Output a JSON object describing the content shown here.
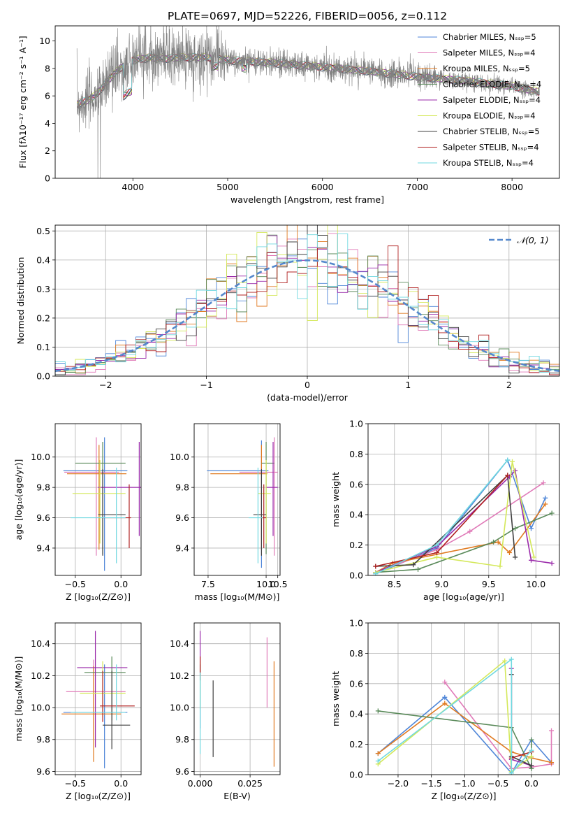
{
  "title": "PLATE=0697, MJD=52226, FIBERID=0056, z=0.112",
  "colors": {
    "Chabrier MILES": "#4f86d8",
    "Salpeter MILES": "#e07ab8",
    "Kroupa MILES": "#e07a20",
    "Chabrier ELODIE": "#5a8a5a",
    "Salpeter ELODIE": "#9a2aaa",
    "Kroupa ELODIE": "#d4e85a",
    "Chabrier STELIB": "#404040",
    "Salpeter STELIB": "#b02020",
    "Kroupa STELIB": "#70d8e0",
    "data": "#808080",
    "normal": "#5588cc"
  },
  "chart_data": [
    {
      "type": "line",
      "panel": "spectrum",
      "xlabel": "wavelength [Angstrom, rest frame]",
      "ylabel": "Flux [fλ10⁻¹⁷ erg cm⁻² s⁻¹ A⁻¹]",
      "xlim": [
        3180,
        8500
      ],
      "ylim": [
        0,
        11.1
      ],
      "xticks": [
        4000,
        5000,
        6000,
        7000,
        8000
      ],
      "yticks": [
        0,
        2,
        4,
        6,
        8,
        10
      ],
      "legend_position": "top-right",
      "legend": [
        {
          "label": "Chabrier MILES, Nₛₛₚ=5",
          "key": "Chabrier MILES"
        },
        {
          "label": "Salpeter MILES, Nₛₛₚ=4",
          "key": "Salpeter MILES"
        },
        {
          "label": "Kroupa MILES, Nₛₛₚ=5",
          "key": "Kroupa MILES"
        },
        {
          "label": "Chabrier ELODIE, Nₛₛₚ=4",
          "key": "Chabrier ELODIE"
        },
        {
          "label": "Salpeter ELODIE, Nₛₛₚ=4",
          "key": "Salpeter ELODIE"
        },
        {
          "label": "Kroupa ELODIE, Nₛₛₚ=4",
          "key": "Kroupa ELODIE"
        },
        {
          "label": "Chabrier STELIB, Nₛₛₚ=5",
          "key": "Chabrier STELIB"
        },
        {
          "label": "Salpeter STELIB, Nₛₛₚ=4",
          "key": "Salpeter STELIB"
        },
        {
          "label": "Kroupa STELIB, Nₛₛₚ=4",
          "key": "Kroupa STELIB"
        }
      ],
      "continuum": {
        "x": [
          3400,
          3500,
          3600,
          3700,
          3800,
          3900,
          4000,
          4100,
          4200,
          4300,
          4500,
          4800,
          5000,
          5500,
          6000,
          6500,
          7000,
          7500,
          8000,
          8280
        ],
        "y": [
          5.4,
          5.6,
          6.0,
          6.8,
          7.6,
          8.2,
          8.6,
          8.7,
          8.8,
          8.7,
          8.8,
          8.8,
          8.6,
          8.4,
          8.1,
          7.8,
          7.4,
          7.1,
          6.7,
          6.3
        ]
      },
      "data_range": [
        3410,
        8290
      ]
    },
    {
      "type": "histogram",
      "panel": "residuals",
      "xlabel": "(data-model)/error",
      "ylabel": "Normed distribution",
      "xlim": [
        -2.5,
        2.5
      ],
      "ylim": [
        0,
        0.52
      ],
      "xticks": [
        -2,
        -1,
        0,
        1,
        2
      ],
      "yticks": [
        0,
        0.1,
        0.2,
        0.3,
        0.4,
        0.5
      ],
      "bin_width": 0.1,
      "series_keys": [
        "Chabrier MILES",
        "Salpeter MILES",
        "Kroupa MILES",
        "Chabrier ELODIE",
        "Salpeter ELODIE",
        "Kroupa ELODIE",
        "Chabrier STELIB",
        "Salpeter STELIB",
        "Kroupa STELIB"
      ],
      "legend": [
        {
          "label": "𝒩(0, 1)",
          "style": "dashed"
        }
      ],
      "legend_position": "top-right"
    },
    {
      "type": "errorbar",
      "panel": "age-vs-Z",
      "xlabel": "Z [log₁₀(Z/Z⊙)]",
      "ylabel": "age  [log₁₀(age/yr)]",
      "xlim": [
        -0.72,
        0.22
      ],
      "ylim": [
        9.22,
        10.22
      ],
      "xticks": [
        -0.5,
        0.0
      ],
      "yticks": [
        9.4,
        9.6,
        9.8,
        10.0
      ],
      "points": [
        {
          "key": "Chabrier MILES",
          "x": -0.18,
          "xerr": [
            0.45,
            0.25
          ],
          "y": 9.91,
          "yerr": [
            0.66,
            0.22
          ]
        },
        {
          "key": "Salpeter MILES",
          "x": -0.27,
          "xerr": [
            0.35,
            0.25
          ],
          "y": 9.9,
          "yerr": [
            0.55,
            0.23
          ]
        },
        {
          "key": "Kroupa MILES",
          "x": -0.24,
          "xerr": [
            0.35,
            0.3
          ],
          "y": 9.89,
          "yerr": [
            0.5,
            0.19
          ]
        },
        {
          "key": "Chabrier ELODIE",
          "x": -0.2,
          "xerr": [
            0.3,
            0.25
          ],
          "y": 9.96,
          "yerr": [
            0.6,
            0.14
          ]
        },
        {
          "key": "Salpeter ELODIE",
          "x": 0.2,
          "xerr": [
            0.45,
            0.2
          ],
          "y": 9.8,
          "yerr": [
            0.32,
            0.3
          ]
        },
        {
          "key": "Kroupa ELODIE",
          "x": -0.23,
          "xerr": [
            0.3,
            0.28
          ],
          "y": 9.76,
          "yerr": [
            0.33,
            0.22
          ]
        },
        {
          "key": "Chabrier STELIB",
          "x": -0.2,
          "xerr": [
            0.05,
            0.25
          ],
          "y": 9.62,
          "yerr": [
            0.27,
            0.3
          ]
        },
        {
          "key": "Salpeter STELIB",
          "x": 0.09,
          "xerr": [
            0.3,
            0.02
          ],
          "y": 9.6,
          "yerr": [
            0.2,
            0.22
          ]
        },
        {
          "key": "Kroupa STELIB",
          "x": -0.05,
          "xerr": [
            0.5,
            0.1
          ],
          "y": 9.6,
          "yerr": [
            0.3,
            0.33
          ]
        }
      ]
    },
    {
      "type": "errorbar",
      "panel": "age-vs-mass",
      "xlabel": "mass [log₁₀(M/M⊙)]",
      "xlim": [
        6.9,
        10.6
      ],
      "ylim": [
        9.22,
        10.22
      ],
      "xticks": [
        7.5,
        10.0,
        10.5
      ],
      "xticklabels": [
        "7.5",
        "10.0",
        "10.5"
      ],
      "yticks": [
        9.4,
        9.6,
        9.8,
        10.0
      ],
      "points": [
        {
          "key": "Chabrier MILES",
          "x": 9.8,
          "xerr": [
            2.35,
            0.3
          ],
          "y": 9.91,
          "yerr": [
            0.64,
            0.2
          ]
        },
        {
          "key": "Salpeter MILES",
          "x": 10.35,
          "xerr": [
            1.5,
            0.15
          ],
          "y": 9.9,
          "yerr": [
            0.55,
            0.23
          ]
        },
        {
          "key": "Kroupa MILES",
          "x": 9.8,
          "xerr": [
            2.2,
            0.25
          ],
          "y": 9.89,
          "yerr": [
            0.5,
            0.19
          ]
        },
        {
          "key": "Chabrier ELODIE",
          "x": 10.0,
          "xerr": [
            0.2,
            0.35
          ],
          "y": 9.96,
          "yerr": [
            0.6,
            0.14
          ]
        },
        {
          "key": "Salpeter ELODIE",
          "x": 10.3,
          "xerr": [
            0.3,
            0.2
          ],
          "y": 9.8,
          "yerr": [
            0.32,
            0.3
          ]
        },
        {
          "key": "Kroupa ELODIE",
          "x": 10.0,
          "xerr": [
            0.35,
            0.2
          ],
          "y": 9.76,
          "yerr": [
            0.33,
            0.22
          ]
        },
        {
          "key": "Chabrier STELIB",
          "x": 9.8,
          "xerr": [
            0.35,
            0.2
          ],
          "y": 9.62,
          "yerr": [
            0.27,
            0.3
          ]
        },
        {
          "key": "Salpeter STELIB",
          "x": 9.9,
          "xerr": [
            0.1,
            0.1
          ],
          "y": 9.6,
          "yerr": [
            0.2,
            0.22
          ]
        },
        {
          "key": "Kroupa STELIB",
          "x": 9.65,
          "xerr": [
            0.4,
            0.2
          ],
          "y": 9.6,
          "yerr": [
            0.3,
            0.33
          ]
        }
      ]
    },
    {
      "type": "line",
      "panel": "massweight-vs-age",
      "xlabel": "age  [log₁₀(age/yr)]",
      "ylabel": "mass weight",
      "xlim": [
        8.22,
        10.25
      ],
      "ylim": [
        0,
        1.0
      ],
      "xticks": [
        8.5,
        9.0,
        9.5,
        10.0
      ],
      "yticks": [
        0,
        0.2,
        0.4,
        0.6,
        0.8,
        1.0
      ],
      "series": [
        {
          "key": "Chabrier MILES",
          "x": [
            8.3,
            8.95,
            9.7,
            9.95,
            10.1
          ],
          "y": [
            0.01,
            0.18,
            0.76,
            0.31,
            0.51
          ]
        },
        {
          "key": "Salpeter MILES",
          "x": [
            8.3,
            8.95,
            9.3,
            10.08
          ],
          "y": [
            0.02,
            0.17,
            0.29,
            0.61
          ]
        },
        {
          "key": "Kroupa MILES",
          "x": [
            8.3,
            8.48,
            9.6,
            9.72,
            10.1
          ],
          "y": [
            0.02,
            0.08,
            0.22,
            0.15,
            0.47
          ]
        },
        {
          "key": "Chabrier ELODIE",
          "x": [
            8.3,
            8.75,
            9.55,
            9.78,
            10.17
          ],
          "y": [
            0.02,
            0.04,
            0.22,
            0.31,
            0.41
          ]
        },
        {
          "key": "Salpeter ELODIE",
          "x": [
            8.3,
            8.95,
            9.72,
            9.78,
            9.95,
            10.17
          ],
          "y": [
            0.02,
            0.19,
            0.65,
            0.69,
            0.1,
            0.08
          ]
        },
        {
          "key": "Kroupa ELODIE",
          "x": [
            8.3,
            8.95,
            9.62,
            9.75,
            9.98
          ],
          "y": [
            0.02,
            0.12,
            0.06,
            0.75,
            0.12
          ]
        },
        {
          "key": "Chabrier STELIB",
          "x": [
            8.3,
            8.7,
            9.7,
            9.78
          ],
          "y": [
            0.06,
            0.07,
            0.66,
            0.12
          ]
        },
        {
          "key": "Salpeter STELIB",
          "x": [
            8.3,
            8.95,
            9.7
          ],
          "y": [
            0.06,
            0.15,
            0.66
          ]
        },
        {
          "key": "Kroupa STELIB",
          "x": [
            8.3,
            8.95,
            9.7
          ],
          "y": [
            0.01,
            0.2,
            0.76
          ]
        }
      ]
    },
    {
      "type": "errorbar",
      "panel": "mass-vs-Z",
      "xlabel": "Z [log₁₀(Z/Z⊙)]",
      "ylabel": "mass [log₁₀(M/M⊙)]",
      "xlim": [
        -0.72,
        0.22
      ],
      "ylim": [
        9.58,
        10.53
      ],
      "xticks": [
        -0.5,
        0.0
      ],
      "yticks": [
        9.6,
        9.8,
        10.0,
        10.2,
        10.4
      ],
      "points": [
        {
          "key": "Chabrier MILES",
          "x": -0.18,
          "xerr": [
            0.45,
            0.25
          ],
          "y": 9.97,
          "yerr": [
            0.35,
            0.3
          ]
        },
        {
          "key": "Salpeter MILES",
          "x": -0.3,
          "xerr": [
            0.3,
            0.35
          ],
          "y": 10.1,
          "yerr": [
            0.3,
            0.2
          ]
        },
        {
          "key": "Kroupa MILES",
          "x": -0.3,
          "xerr": [
            0.35,
            0.3
          ],
          "y": 9.96,
          "yerr": [
            0.3,
            0.3
          ]
        },
        {
          "key": "Chabrier ELODIE",
          "x": -0.1,
          "xerr": [
            0.3,
            0.15
          ],
          "y": 10.22,
          "yerr": [
            0.3,
            0.1
          ]
        },
        {
          "key": "Salpeter ELODIE",
          "x": -0.28,
          "xerr": [
            0.2,
            0.35
          ],
          "y": 10.25,
          "yerr": [
            0.5,
            0.23
          ]
        },
        {
          "key": "Kroupa ELODIE",
          "x": -0.2,
          "xerr": [
            0.25,
            0.25
          ],
          "y": 10.09,
          "yerr": [
            0.15,
            0.2
          ]
        },
        {
          "key": "Chabrier STELIB",
          "x": -0.1,
          "xerr": [
            0.1,
            0.2
          ],
          "y": 9.89,
          "yerr": [
            0.15,
            0.34
          ]
        },
        {
          "key": "Salpeter STELIB",
          "x": -0.2,
          "xerr": [
            0.03,
            0.35
          ],
          "y": 10.01,
          "yerr": [
            0.1,
            0.22
          ]
        },
        {
          "key": "Kroupa STELIB",
          "x": -0.05,
          "xerr": [
            0.5,
            0.1
          ],
          "y": 9.97,
          "yerr": [
            0.05,
            0.3
          ]
        }
      ]
    },
    {
      "type": "errorbar",
      "panel": "mass-vs-EBV",
      "xlabel": "E(B-V)",
      "xlim": [
        -0.003,
        0.04
      ],
      "ylim": [
        9.58,
        10.53
      ],
      "xticks": [
        0.0,
        0.025
      ],
      "xticklabels": [
        "0.000",
        "0.025"
      ],
      "yticks": [
        9.6,
        9.8,
        10.0,
        10.2,
        10.4
      ],
      "points": [
        {
          "key": "Chabrier MILES",
          "x": 0.0,
          "xerr": [
            0,
            0
          ],
          "y": 9.97,
          "yerr": [
            0.1,
            0.3
          ]
        },
        {
          "key": "Salpeter MILES",
          "x": 0.0335,
          "xerr": [
            0,
            0
          ],
          "y": 10.1,
          "yerr": [
            0.1,
            0.34
          ]
        },
        {
          "key": "Kroupa MILES",
          "x": 0.037,
          "xerr": [
            0,
            0
          ],
          "y": 9.96,
          "yerr": [
            0.33,
            0.33
          ]
        },
        {
          "key": "Chabrier ELODIE",
          "x": 0.0,
          "xerr": [
            0,
            0
          ],
          "y": 10.22,
          "yerr": [
            0.05,
            0.05
          ]
        },
        {
          "key": "Salpeter ELODIE",
          "x": 0.0,
          "xerr": [
            0,
            0
          ],
          "y": 10.3,
          "yerr": [
            0.1,
            0.18
          ]
        },
        {
          "key": "Kroupa ELODIE",
          "x": 0.0,
          "xerr": [
            0,
            0
          ],
          "y": 10.09,
          "yerr": [
            0.1,
            0.2
          ]
        },
        {
          "key": "Chabrier STELIB",
          "x": 0.0065,
          "xerr": [
            0,
            0
          ],
          "y": 9.89,
          "yerr": [
            0.2,
            0.28
          ]
        },
        {
          "key": "Salpeter STELIB",
          "x": 0.0,
          "xerr": [
            0,
            0
          ],
          "y": 10.22,
          "yerr": [
            0.05,
            0.1
          ]
        },
        {
          "key": "Kroupa STELIB",
          "x": 0.0,
          "xerr": [
            0,
            0
          ],
          "y": 9.97,
          "yerr": [
            0.26,
            0.25
          ]
        }
      ]
    },
    {
      "type": "line",
      "panel": "massweight-vs-Z",
      "xlabel": "Z [log₁₀(Z/Z⊙)]",
      "ylabel": "mass weight",
      "xlim": [
        -2.45,
        0.42
      ],
      "ylim": [
        0,
        1.0
      ],
      "xticks": [
        -2.0,
        -1.5,
        -1.0,
        -0.5,
        0.0
      ],
      "yticks": [
        0,
        0.2,
        0.4,
        0.6,
        0.8,
        1.0
      ],
      "series": [
        {
          "key": "Chabrier MILES",
          "x": [
            -2.3,
            -1.3,
            -0.3,
            0.0,
            0.3
          ],
          "y": [
            0.14,
            0.51,
            0.01,
            0.23,
            0.08
          ]
        },
        {
          "key": "Salpeter MILES",
          "x": [
            -1.3,
            -0.3,
            0.0,
            0.3,
            0.3
          ],
          "y": [
            0.61,
            0.04,
            0.05,
            0.07,
            0.29
          ]
        },
        {
          "key": "Kroupa MILES",
          "x": [
            -2.3,
            -1.3,
            -0.3,
            0.0,
            0.3
          ],
          "y": [
            0.14,
            0.47,
            0.15,
            0.11,
            0.08
          ]
        },
        {
          "key": "Chabrier ELODIE",
          "x": [
            -2.3,
            -0.3,
            0.0,
            0.0
          ],
          "y": [
            0.42,
            0.31,
            0.04,
            0.23
          ]
        },
        {
          "key": "Salpeter ELODIE",
          "x": [
            -0.3,
            -0.3,
            0.0
          ],
          "y": [
            0.7,
            0.1,
            0.06
          ]
        },
        {
          "key": "Kroupa ELODIE",
          "x": [
            -2.3,
            -0.4,
            -0.3,
            0.0
          ],
          "y": [
            0.07,
            0.75,
            0.02,
            0.12
          ]
        },
        {
          "key": "Chabrier STELIB",
          "x": [
            -0.3,
            -0.3,
            0.0
          ],
          "y": [
            0.66,
            0.12,
            0.06
          ]
        },
        {
          "key": "Salpeter STELIB",
          "x": [
            -0.3,
            0.0
          ],
          "y": [
            0.11,
            0.15
          ]
        },
        {
          "key": "Kroupa STELIB",
          "x": [
            -2.3,
            -0.3,
            -0.3,
            0.0
          ],
          "y": [
            0.09,
            0.76,
            0.01,
            0.16
          ]
        }
      ]
    }
  ]
}
